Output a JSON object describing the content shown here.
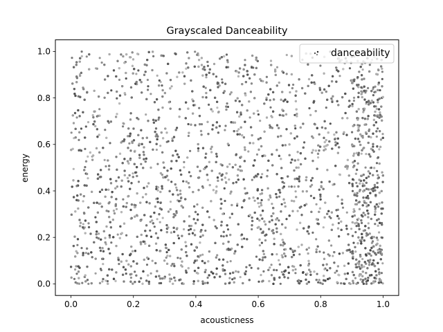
{
  "chart_data": {
    "type": "scatter",
    "title": "Grayscaled Danceability",
    "xlabel": "acousticness",
    "ylabel": "energy",
    "xlim": [
      -0.05,
      1.05
    ],
    "ylim": [
      -0.05,
      1.05
    ],
    "x_ticks": [
      0.0,
      0.2,
      0.4,
      0.6,
      0.8,
      1.0
    ],
    "y_ticks": [
      0.0,
      0.2,
      0.4,
      0.6,
      0.8,
      1.0
    ],
    "x_tick_labels": [
      "0.0",
      "0.2",
      "0.4",
      "0.6",
      "0.8",
      "1.0"
    ],
    "y_tick_labels": [
      "0.0",
      "0.2",
      "0.4",
      "0.6",
      "0.8",
      "1.0"
    ],
    "grid": false,
    "legend": {
      "position": "top-right",
      "entries": [
        "danceability"
      ]
    },
    "color_encoding": "grayscale by danceability",
    "series": [
      {
        "name": "danceability",
        "x_range": [
          0.0,
          1.0
        ],
        "y_range": [
          0.0,
          1.0
        ],
        "points_sample": [
          {
            "x": 0.05,
            "y": 0.95
          },
          {
            "x": 0.12,
            "y": 0.8
          },
          {
            "x": 0.2,
            "y": 0.55
          },
          {
            "x": 0.28,
            "y": 0.3
          },
          {
            "x": 0.35,
            "y": 0.08
          },
          {
            "x": 0.42,
            "y": 0.9
          },
          {
            "x": 0.5,
            "y": 0.62
          },
          {
            "x": 0.58,
            "y": 0.4
          },
          {
            "x": 0.66,
            "y": 0.15
          },
          {
            "x": 0.74,
            "y": 0.78
          },
          {
            "x": 0.82,
            "y": 0.5
          },
          {
            "x": 0.9,
            "y": 0.22
          },
          {
            "x": 0.97,
            "y": 0.05
          },
          {
            "x": 0.99,
            "y": 0.9
          },
          {
            "x": 0.02,
            "y": 0.02
          },
          {
            "x": 0.15,
            "y": 0.12
          },
          {
            "x": 0.6,
            "y": 0.97
          },
          {
            "x": 0.88,
            "y": 0.7
          }
        ]
      }
    ]
  }
}
